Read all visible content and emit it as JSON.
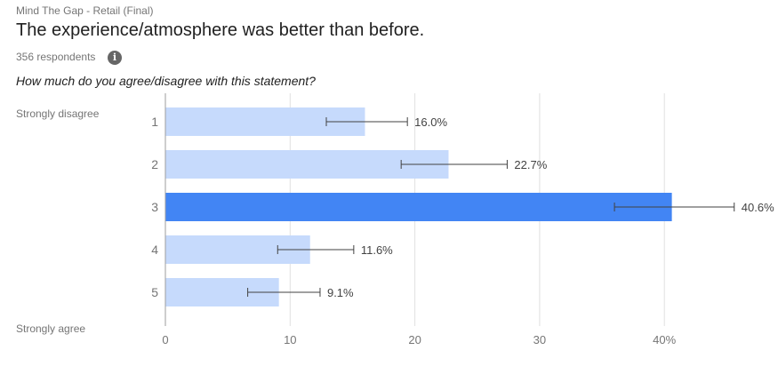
{
  "header": {
    "survey_name": "Mind The Gap - Retail (Final)",
    "title": "The experience/atmosphere was better than before.",
    "respondents": "356 respondents",
    "info_icon": "info-icon",
    "question": "How much do you agree/disagree with this statement?"
  },
  "scale": {
    "low_label": "Strongly disagree",
    "high_label": "Strongly agree"
  },
  "colors": {
    "bar": "#c6dafc",
    "bar_highlight": "#4285f4",
    "axis": "#9e9e9e",
    "grid": "#e0e0e0",
    "error_bar": "#424242"
  },
  "chart_data": {
    "type": "bar",
    "orientation": "horizontal",
    "title": "The experience/atmosphere was better than before.",
    "xlabel": "",
    "ylabel": "",
    "categories": [
      "1",
      "2",
      "3",
      "4",
      "5"
    ],
    "values": [
      16.0,
      22.7,
      40.6,
      11.6,
      9.1
    ],
    "value_labels": [
      "16.0%",
      "22.7%",
      "40.6%",
      "11.6%",
      "9.1%"
    ],
    "error_bars": [
      [
        12.9,
        19.4
      ],
      [
        18.9,
        27.4
      ],
      [
        36.0,
        45.6
      ],
      [
        9.0,
        15.1
      ],
      [
        6.6,
        12.4
      ]
    ],
    "highlight_index": 2,
    "xlim": [
      0,
      45
    ],
    "x_ticks": [
      "0",
      "10",
      "20",
      "30",
      "40%"
    ],
    "x_tick_values": [
      0,
      10,
      20,
      30,
      40
    ],
    "grid": true,
    "legend": null
  }
}
